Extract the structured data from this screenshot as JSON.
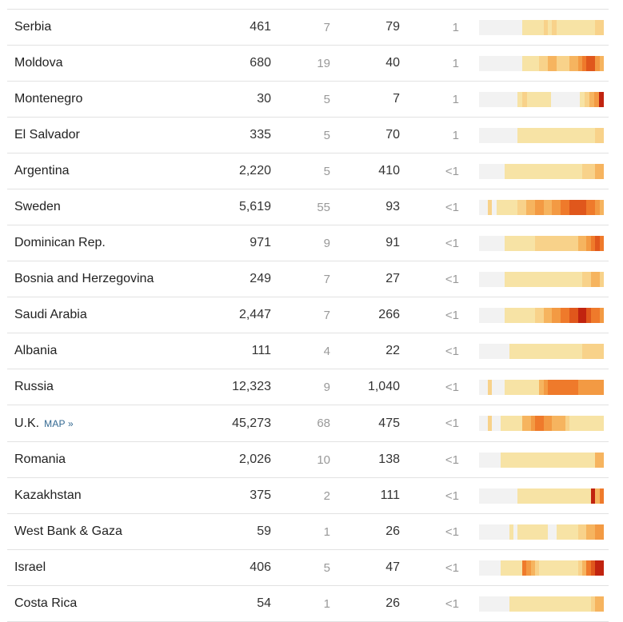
{
  "colors": {
    "0": "#f2f2f2",
    "1": "#f7e3a5",
    "2": "#f8d28a",
    "3": "#f6b45f",
    "4": "#f39a43",
    "5": "#ef7a2b",
    "6": "#e0571c",
    "7": "#c1230f"
  },
  "rows": [
    {
      "name": "Serbia",
      "cases": "461",
      "new_cases": "7",
      "deaths": "79",
      "new_deaths": "1",
      "trend": "00000000001111121211111111122"
    },
    {
      "name": "Moldova",
      "cases": "680",
      "new_cases": "19",
      "deaths": "40",
      "new_deaths": "1",
      "trend": "00000000001111223322233456643"
    },
    {
      "name": "Montenegro",
      "cases": "30",
      "new_cases": "5",
      "deaths": "7",
      "new_deaths": "1",
      "trend": "00000000121111100000012347"
    },
    {
      "name": "El Salvador",
      "cases": "335",
      "new_cases": "5",
      "deaths": "70",
      "new_deaths": "1",
      "trend": "00000000011111111111111111122"
    },
    {
      "name": "Argentina",
      "cases": "2,220",
      "new_cases": "5",
      "deaths": "410",
      "new_deaths": "<1",
      "trend": "00000011111111111111111122233"
    },
    {
      "name": "Sweden",
      "cases": "5,619",
      "new_cases": "55",
      "deaths": "93",
      "new_deaths": "<1",
      "trend": "00201111122334433445566665543"
    },
    {
      "name": "Dominican Rep.",
      "cases": "971",
      "new_cases": "9",
      "deaths": "91",
      "new_deaths": "<1",
      "trend": "00000011111112222222222334565"
    },
    {
      "name": "Bosnia and Herzegovina",
      "cases": "249",
      "new_cases": "7",
      "deaths": "27",
      "new_deaths": "<1",
      "trend": "00000011111111111111111122332"
    },
    {
      "name": "Saudi Arabia",
      "cases": "2,447",
      "new_cases": "7",
      "deaths": "266",
      "new_deaths": "<1",
      "trend": "00000011111112233445566776554"
    },
    {
      "name": "Albania",
      "cases": "111",
      "new_cases": "4",
      "deaths": "22",
      "new_deaths": "<1",
      "trend": "00000001111111111111111122222"
    },
    {
      "name": "Russia",
      "cases": "12,323",
      "new_cases": "9",
      "deaths": "1,040",
      "new_deaths": "<1",
      "trend": "00200011111111345555555444444"
    },
    {
      "name": "U.K.",
      "map": "MAP »",
      "cases": "45,273",
      "new_cases": "68",
      "deaths": "475",
      "new_deaths": "<1",
      "trend": "00200111113345544333211111111"
    },
    {
      "name": "Romania",
      "cases": "2,026",
      "new_cases": "10",
      "deaths": "138",
      "new_deaths": "<1",
      "trend": "00000111111111111111111111133"
    },
    {
      "name": "Kazakhstan",
      "cases": "375",
      "new_cases": "2",
      "deaths": "111",
      "new_deaths": "<1",
      "trend": "00000000011111111111111111735"
    },
    {
      "name": "West Bank & Gaza",
      "cases": "59",
      "new_cases": "1",
      "deaths": "26",
      "new_deaths": "<1",
      "trend": "00000001011111110011111223344"
    },
    {
      "name": "Israel",
      "cases": "406",
      "new_cases": "5",
      "deaths": "47",
      "new_deaths": "<1",
      "trend": "00000111115432111111111235677"
    },
    {
      "name": "Costa Rica",
      "cases": "54",
      "new_cases": "1",
      "deaths": "26",
      "new_deaths": "<1",
      "trend": "00000001111111111111111111233"
    }
  ]
}
